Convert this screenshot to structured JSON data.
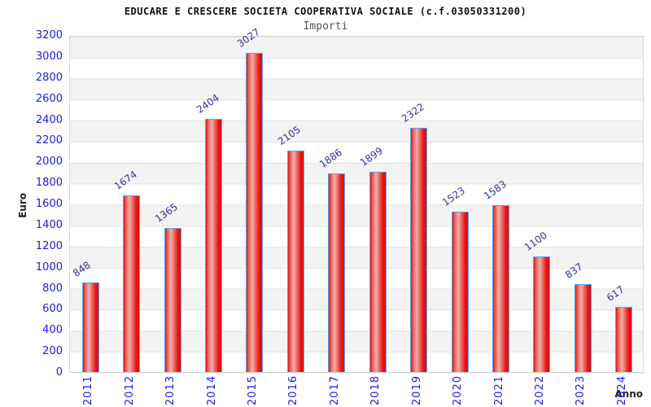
{
  "chart_data": {
    "type": "bar",
    "title": "EDUCARE E CRESCERE SOCIETA COOPERATIVA SOCIALE (c.f.03050331200)",
    "subtitle": "Importi",
    "xlabel": "Anno",
    "ylabel": "Euro",
    "categories": [
      "2011",
      "2012",
      "2013",
      "2014",
      "2015",
      "2016",
      "2017",
      "2018",
      "2019",
      "2020",
      "2021",
      "2022",
      "2023",
      "2024"
    ],
    "values": [
      848,
      1674,
      1365,
      2404,
      3027,
      2105,
      1886,
      1899,
      2322,
      1523,
      1583,
      1100,
      837,
      617
    ],
    "ylim": [
      0,
      3200
    ],
    "ytick_step": 200,
    "grid": "horizontal",
    "legend": "none",
    "colors": {
      "bar_fill_edge": "#e31515",
      "bar_fill_highlight": "#f3ada8",
      "bar_border": "#5aa7e8",
      "value_label": "#333399",
      "tick_label": "#1a1ae6",
      "band_gray": "#f3f3f3",
      "band_white": "#ffffff",
      "gridline": "#e2e2e2",
      "title": "#111111",
      "subtitle": "#555555"
    }
  }
}
